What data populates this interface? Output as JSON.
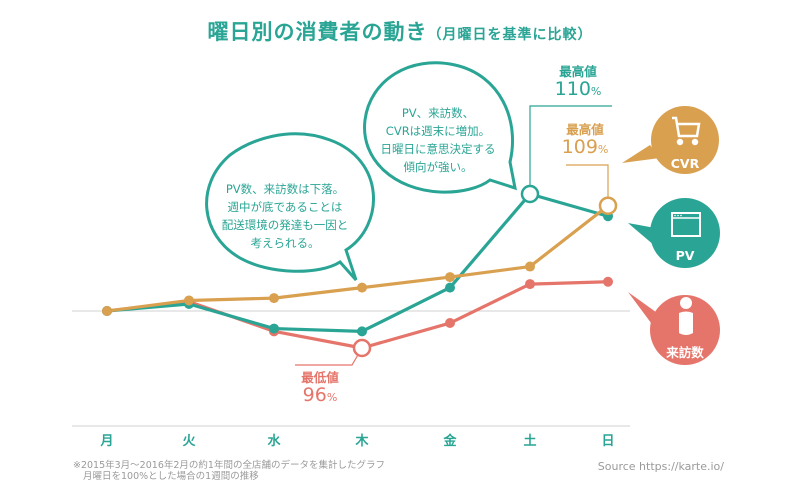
{
  "title": {
    "main": "曜日別の消費者の動き",
    "sub": "（月曜日を基準に比較）"
  },
  "colors": {
    "teal": "#2aa595",
    "orange": "#d9a050",
    "red": "#e5756a",
    "grid": "#cccccc"
  },
  "chart_data": {
    "type": "line",
    "title": "曜日別の消費者の動き（月曜日を基準に比較）",
    "xlabel": "",
    "ylabel": "",
    "categories": [
      "月",
      "火",
      "水",
      "木",
      "金",
      "土",
      "日"
    ],
    "baseline": 100,
    "series": [
      {
        "name": "CVR",
        "color": "#d9a050",
        "values": [
          100,
          100.9,
          101.1,
          102.0,
          102.9,
          103.8,
          109
        ]
      },
      {
        "name": "PV",
        "color": "#2aa595",
        "values": [
          100,
          100.6,
          98.1,
          97.8,
          102.0,
          110,
          108.1
        ]
      },
      {
        "name": "来訪数",
        "color": "#e5756a",
        "values": [
          100,
          100.8,
          97.8,
          96,
          98.7,
          102.3,
          102.5
        ]
      }
    ],
    "annotations": [
      {
        "series": "PV",
        "category": "土",
        "label": "最高値",
        "value": "110",
        "unit": "%"
      },
      {
        "series": "CVR",
        "category": "日",
        "label": "最高値",
        "value": "109",
        "unit": "%"
      },
      {
        "series": "来訪数",
        "category": "木",
        "label": "最低値",
        "value": "96",
        "unit": "%"
      }
    ],
    "legend": "right"
  },
  "bubbles": {
    "weekday": [
      "PV数、来訪数は下落。",
      "週中が底であることは",
      "配送環境の発達も一因と",
      "考えられる。"
    ],
    "weekend": [
      "PV、来訪数、",
      "CVRは週末に増加。",
      "日曜日に意思決定する",
      "傾向が強い。"
    ]
  },
  "legend": [
    {
      "label": "CVR",
      "icon": "cart-icon"
    },
    {
      "label": "PV",
      "icon": "browser-window-icon"
    },
    {
      "label": "来訪数",
      "icon": "person-icon"
    }
  ],
  "footnote": [
    "※2015年3月〜2016年2月の約1年間の全店舗のデータを集計したグラフ",
    "月曜日を100%とした場合の1週間の推移"
  ],
  "source": "Source https://karte.io/"
}
